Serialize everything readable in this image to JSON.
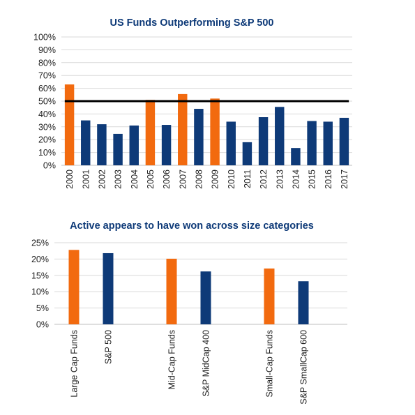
{
  "colors": {
    "orange": "#F26A0F",
    "navy": "#0E3A78",
    "title": "#0E3A78",
    "grid": "#D9D9D9",
    "benchmark_line": "#000000"
  },
  "chart_data": [
    {
      "type": "bar",
      "title": "US Funds Outperforming S&P 500",
      "categories": [
        "2000",
        "2001",
        "2002",
        "2003",
        "2004",
        "2005",
        "2006",
        "2007",
        "2008",
        "2009",
        "2010",
        "2011",
        "2012",
        "2013",
        "2014",
        "2015",
        "2016",
        "2017"
      ],
      "values": [
        63,
        35,
        32,
        24.5,
        31,
        51,
        31.5,
        55.5,
        44,
        52,
        34,
        18,
        37.5,
        45.5,
        13.5,
        34.5,
        34,
        37
      ],
      "bar_colors": [
        "orange",
        "navy",
        "navy",
        "navy",
        "navy",
        "orange",
        "navy",
        "orange",
        "navy",
        "orange",
        "navy",
        "navy",
        "navy",
        "navy",
        "navy",
        "navy",
        "navy",
        "navy"
      ],
      "ylim": [
        0,
        100
      ],
      "ytick_step": 10,
      "ytick_format": "percent",
      "reference_line": 50,
      "xlabel": "",
      "ylabel": "",
      "grid": true,
      "x_tick_rotation": -90
    },
    {
      "type": "bar",
      "title": "Active appears to have won across size categories",
      "categories": [
        "Large Cap Funds",
        "S&P 500",
        "Mid-Cap Funds",
        "S&P MidCap 400",
        "Small-Cap Funds",
        "S&P SmallCap 600"
      ],
      "values": [
        22.8,
        21.8,
        20.1,
        16.2,
        17.1,
        13.2
      ],
      "bar_colors": [
        "orange",
        "navy",
        "orange",
        "navy",
        "orange",
        "navy"
      ],
      "groups": [
        [
          0,
          1
        ],
        [
          2,
          3
        ],
        [
          4,
          5
        ]
      ],
      "ylim": [
        0,
        25
      ],
      "ytick_step": 5,
      "ytick_format": "percent",
      "xlabel": "",
      "ylabel": "",
      "grid": true,
      "x_tick_rotation": -90
    }
  ]
}
